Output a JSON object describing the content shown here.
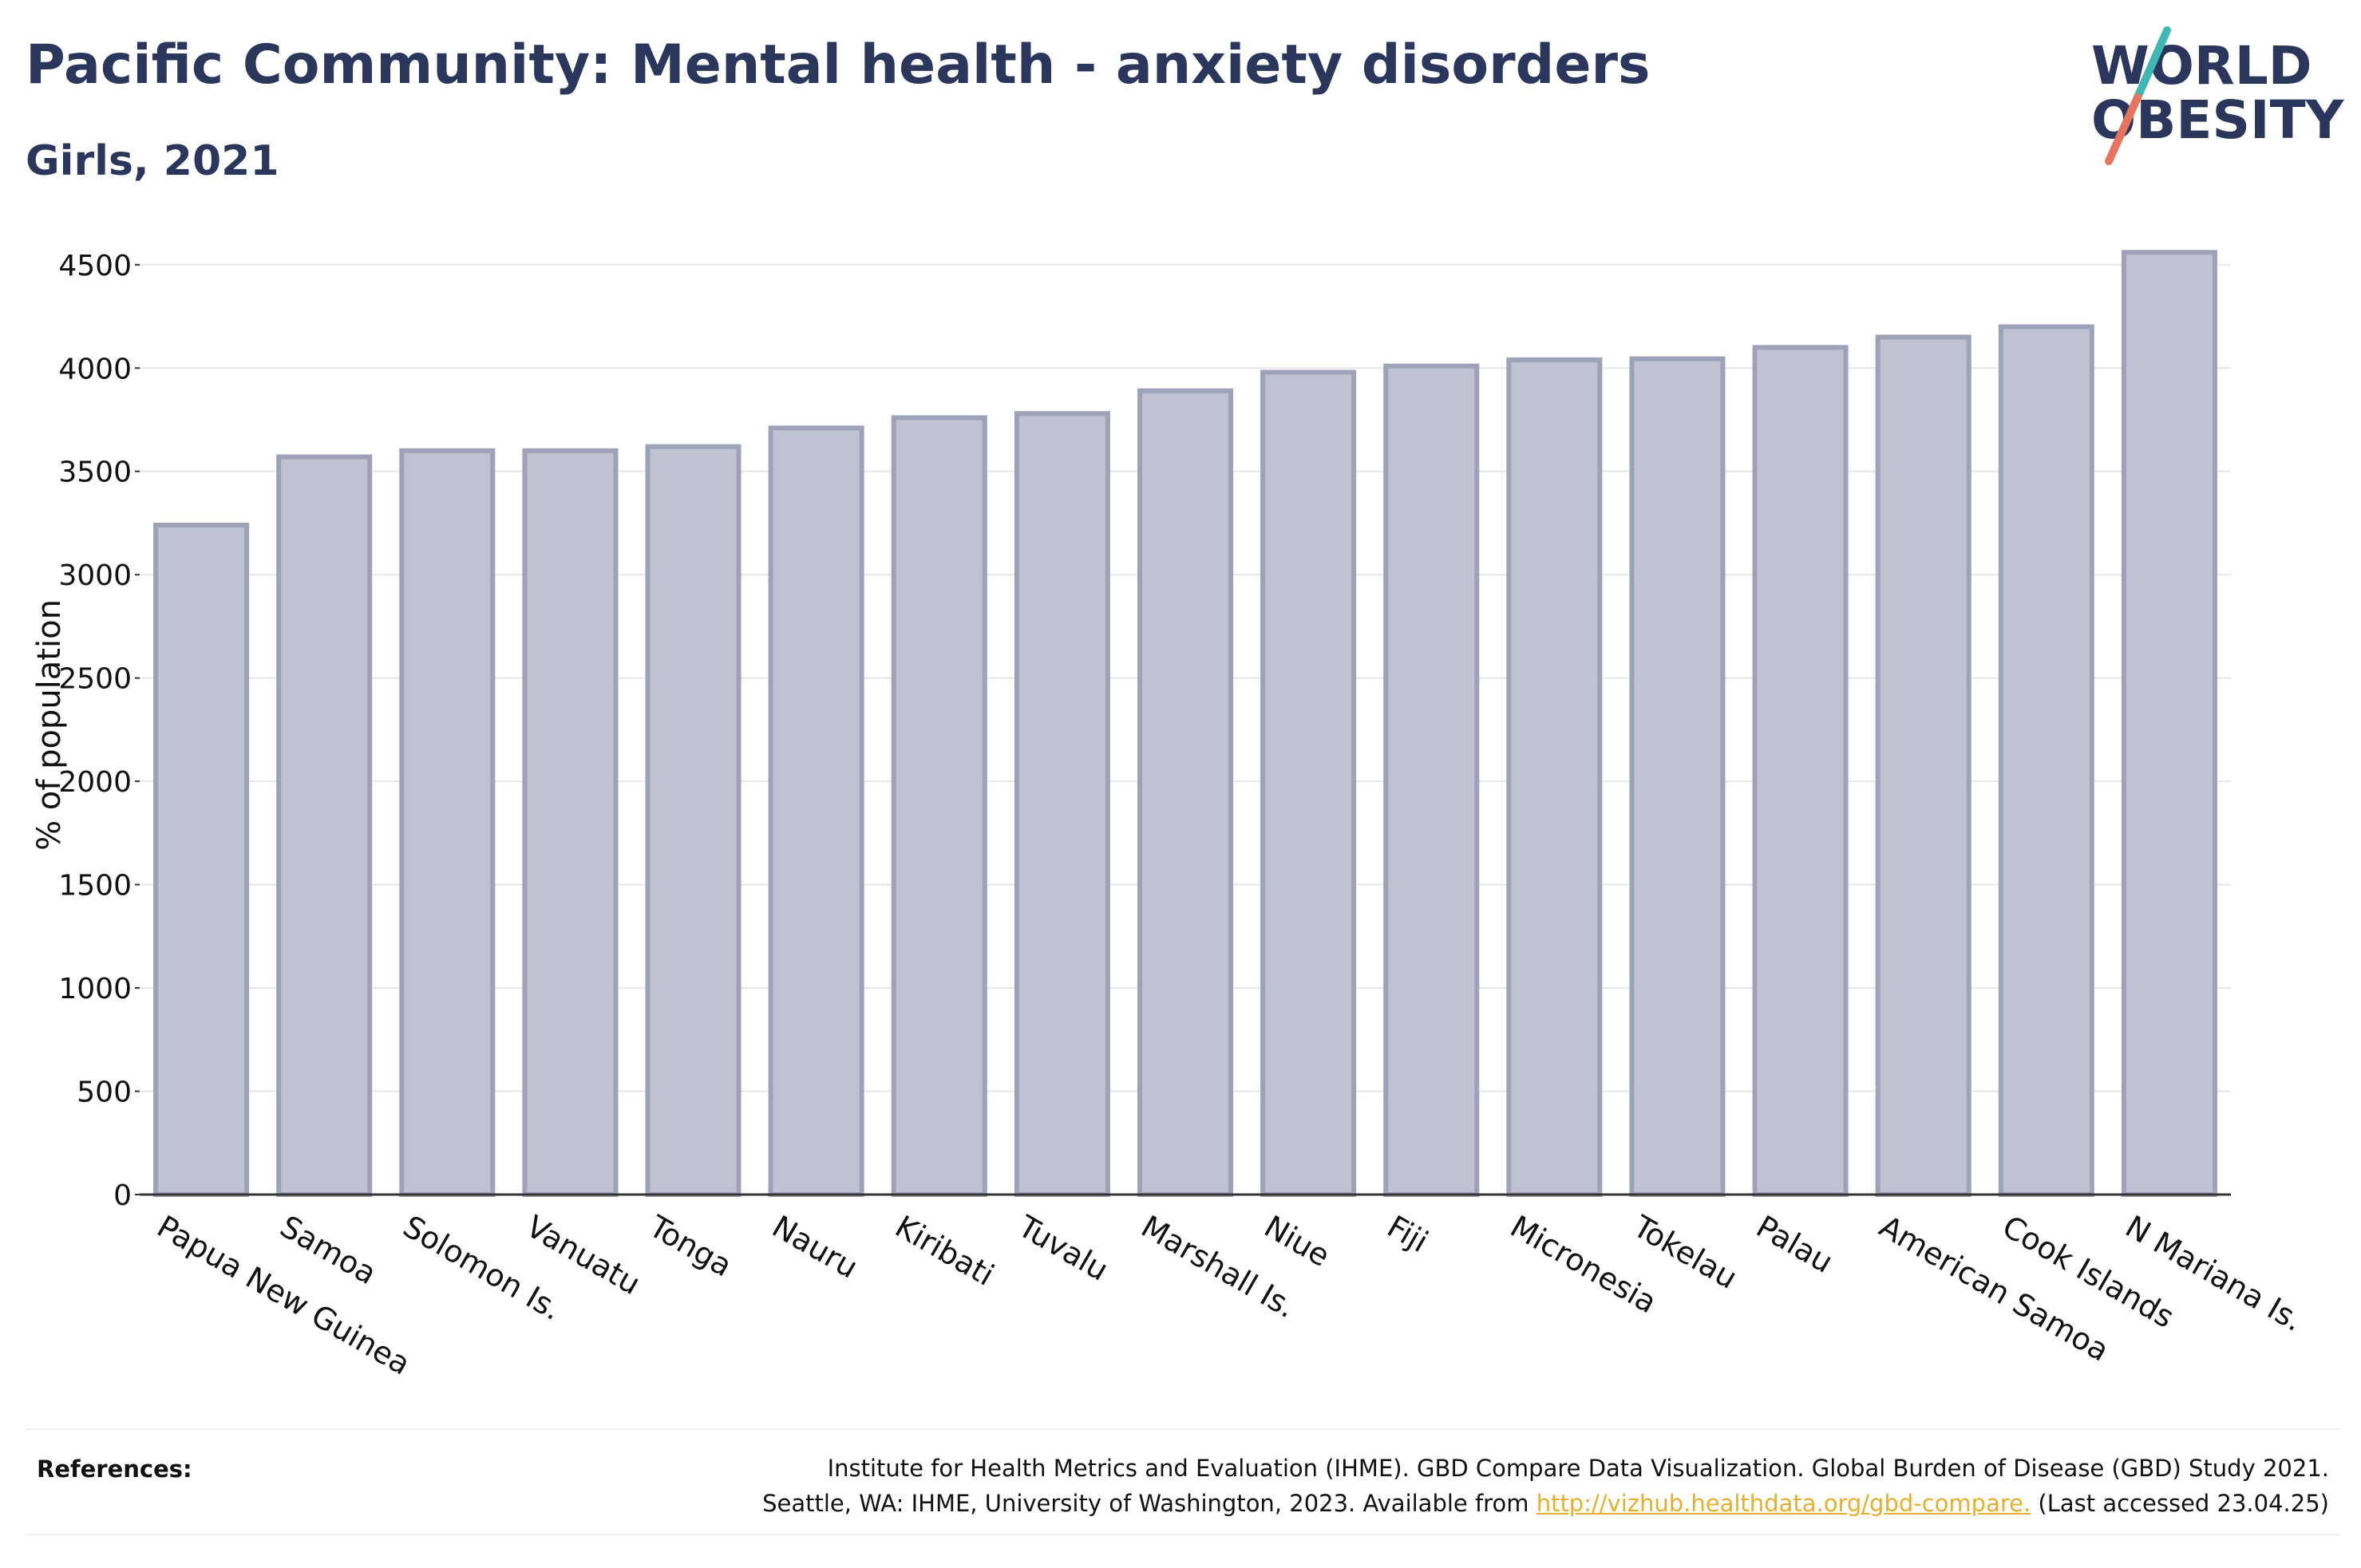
{
  "header": {
    "title": "Pacific Community: Mental health - anxiety disorders",
    "subtitle": "Girls, 2021"
  },
  "logo": {
    "line1": "WORLD",
    "line2": "OBESITY",
    "slash_teal": "#3fb7b3",
    "slash_coral": "#e8735f",
    "text_color": "#2b365c"
  },
  "chart_data": {
    "type": "bar",
    "title": "Pacific Community: Mental health - anxiety disorders",
    "subtitle": "Girls, 2021",
    "ylabel": "% of population",
    "ylim": [
      0,
      4700
    ],
    "yticks": [
      0,
      500,
      1000,
      1500,
      2000,
      2500,
      3000,
      3500,
      4000,
      4500
    ],
    "grid": true,
    "bar_fill": "#bfc2d0",
    "bar_stroke": "#9da2b8",
    "categories": [
      "Papua New Guinea",
      "Samoa",
      "Solomon Is.",
      "Vanuatu",
      "Tonga",
      "Nauru",
      "Kiribati",
      "Tuvalu",
      "Marshall Is.",
      "Niue",
      "Fiji",
      "Micronesia",
      "Tokelau",
      "Palau",
      "American Samoa",
      "Cook Islands",
      "N Mariana Is."
    ],
    "values": [
      3240,
      3570,
      3600,
      3600,
      3620,
      3710,
      3760,
      3780,
      3890,
      3980,
      4010,
      4040,
      4045,
      4100,
      4150,
      4200,
      4560
    ]
  },
  "references": {
    "label": "References:",
    "line1": "Institute for Health Metrics and Evaluation (IHME). GBD Compare Data Visualization. Global Burden of Disease (GBD) Study 2021.",
    "line2_before": "Seattle, WA: IHME, University of Washington, 2023. Available from ",
    "link": "http://vizhub.healthdata.org/gbd-compare.",
    "line2_after": " (Last accessed 23.04.25)"
  }
}
